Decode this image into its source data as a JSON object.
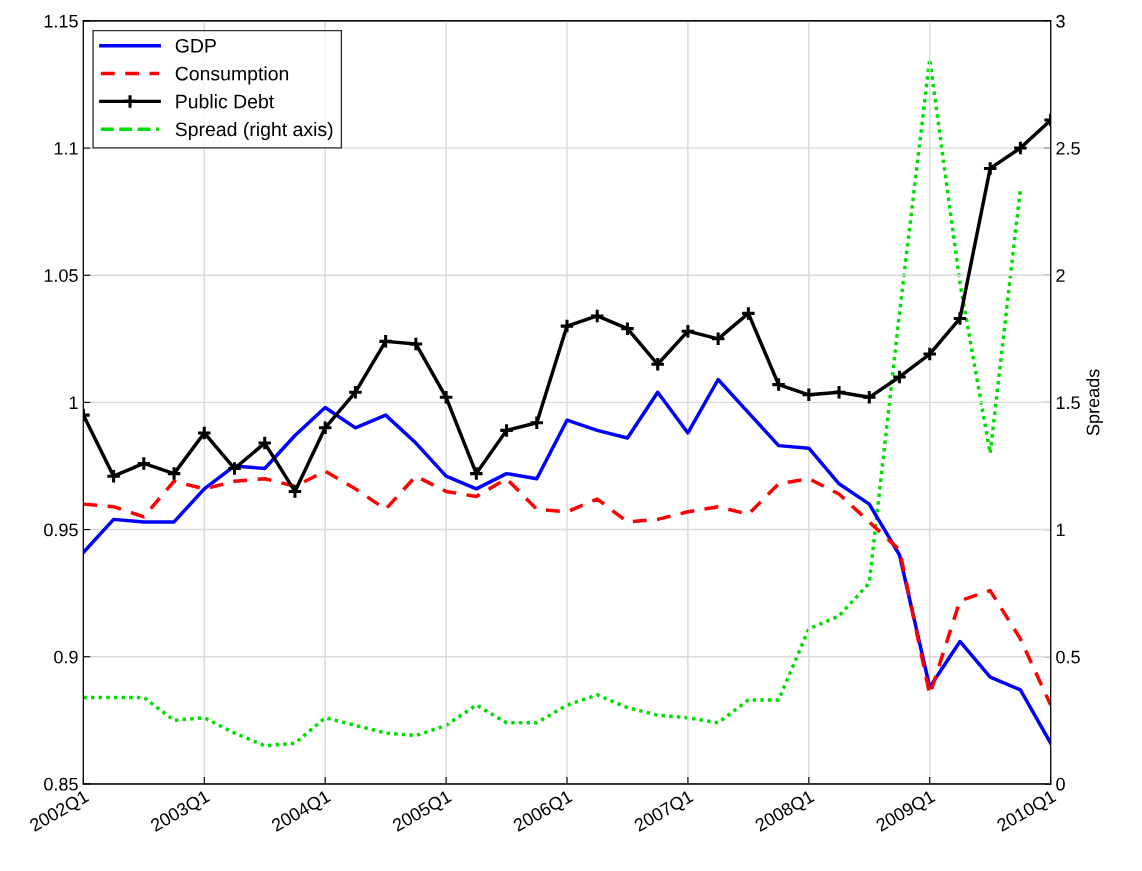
{
  "chart_data": {
    "type": "line",
    "categories": [
      "2002Q1",
      null,
      null,
      null,
      "2003Q1",
      null,
      null,
      null,
      "2004Q1",
      null,
      null,
      null,
      "2005Q1",
      null,
      null,
      null,
      "2006Q1",
      null,
      null,
      null,
      "2007Q1",
      null,
      null,
      null,
      "2008Q1",
      null,
      null,
      null,
      "2009Q1",
      null,
      null,
      null,
      "2010Q1"
    ],
    "series": [
      {
        "name": "GDP",
        "color": "#0000ff",
        "line_style": "solid",
        "marker": "none",
        "values": [
          0.941,
          0.954,
          0.953,
          0.953,
          0.966,
          0.975,
          0.974,
          0.987,
          0.998,
          0.99,
          0.995,
          0.984,
          0.971,
          0.966,
          0.972,
          0.97,
          0.993,
          0.989,
          0.986,
          1.004,
          0.988,
          1.009,
          0.996,
          0.983,
          0.982,
          0.968,
          0.96,
          0.94,
          0.888,
          0.906,
          0.892,
          0.887,
          0.866
        ]
      },
      {
        "name": "Consumption",
        "color": "#ff0000",
        "line_style": "dashed",
        "marker": "none",
        "values": [
          0.96,
          0.959,
          0.955,
          0.969,
          0.966,
          0.969,
          0.97,
          0.967,
          0.973,
          0.966,
          0.958,
          0.971,
          0.965,
          0.963,
          0.97,
          0.958,
          0.957,
          0.962,
          0.953,
          0.954,
          0.957,
          0.959,
          0.956,
          0.968,
          0.97,
          0.964,
          0.953,
          0.942,
          0.885,
          0.922,
          0.926,
          0.907,
          0.881
        ]
      },
      {
        "name": "Public Debt",
        "color": "#000000",
        "line_style": "solid",
        "marker": "cross",
        "values": [
          0.995,
          0.971,
          0.976,
          0.972,
          0.988,
          0.974,
          0.984,
          0.965,
          0.99,
          1.004,
          1.024,
          1.023,
          1.002,
          0.972,
          0.989,
          0.992,
          1.03,
          1.034,
          1.029,
          1.015,
          1.028,
          1.025,
          1.035,
          1.007,
          1.003,
          1.004,
          1.002,
          1.01,
          1.019,
          1.033,
          1.092,
          1.1,
          1.111
        ]
      },
      {
        "name": "Spread (right axis)",
        "color": "#00dd00",
        "line_style": "dotted",
        "marker": "none",
        "axis": "y2",
        "values": [
          0.34,
          0.34,
          0.34,
          0.25,
          0.26,
          0.2,
          0.15,
          0.16,
          0.26,
          0.23,
          0.2,
          0.19,
          0.23,
          0.31,
          0.24,
          0.24,
          0.31,
          0.35,
          0.3,
          0.27,
          0.26,
          0.24,
          0.33,
          0.33,
          0.61,
          0.66,
          0.79,
          1.85,
          2.85,
          1.97,
          1.3,
          2.34,
          null
        ]
      }
    ],
    "y2label": "Spreads",
    "ylim": [
      0.85,
      1.15
    ],
    "yticks": [
      0.85,
      0.9,
      0.95,
      1,
      1.05,
      1.1,
      1.15
    ],
    "y2lim": [
      0,
      3
    ],
    "y2ticks": [
      0,
      0.5,
      1,
      1.5,
      2,
      2.5,
      3
    ],
    "grid": true,
    "legend": "top left"
  }
}
